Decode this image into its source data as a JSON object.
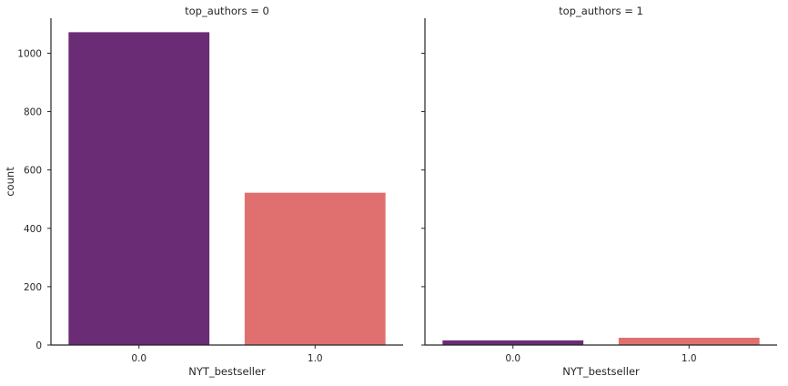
{
  "chart_data": {
    "type": "bar",
    "xlabel": "NYT_bestseller",
    "ylabel": "count",
    "ylim": [
      0,
      1120
    ],
    "yticks": [
      0,
      200,
      400,
      600,
      800,
      1000
    ],
    "categories": [
      "0.0",
      "1.0"
    ],
    "colors": [
      "#6a2c75",
      "#e07070"
    ],
    "grid": false,
    "shared_y": true,
    "panels": [
      {
        "title": "top_authors = 0",
        "values": [
          1072,
          522
        ]
      },
      {
        "title": "top_authors = 1",
        "values": [
          16,
          25
        ]
      }
    ]
  }
}
